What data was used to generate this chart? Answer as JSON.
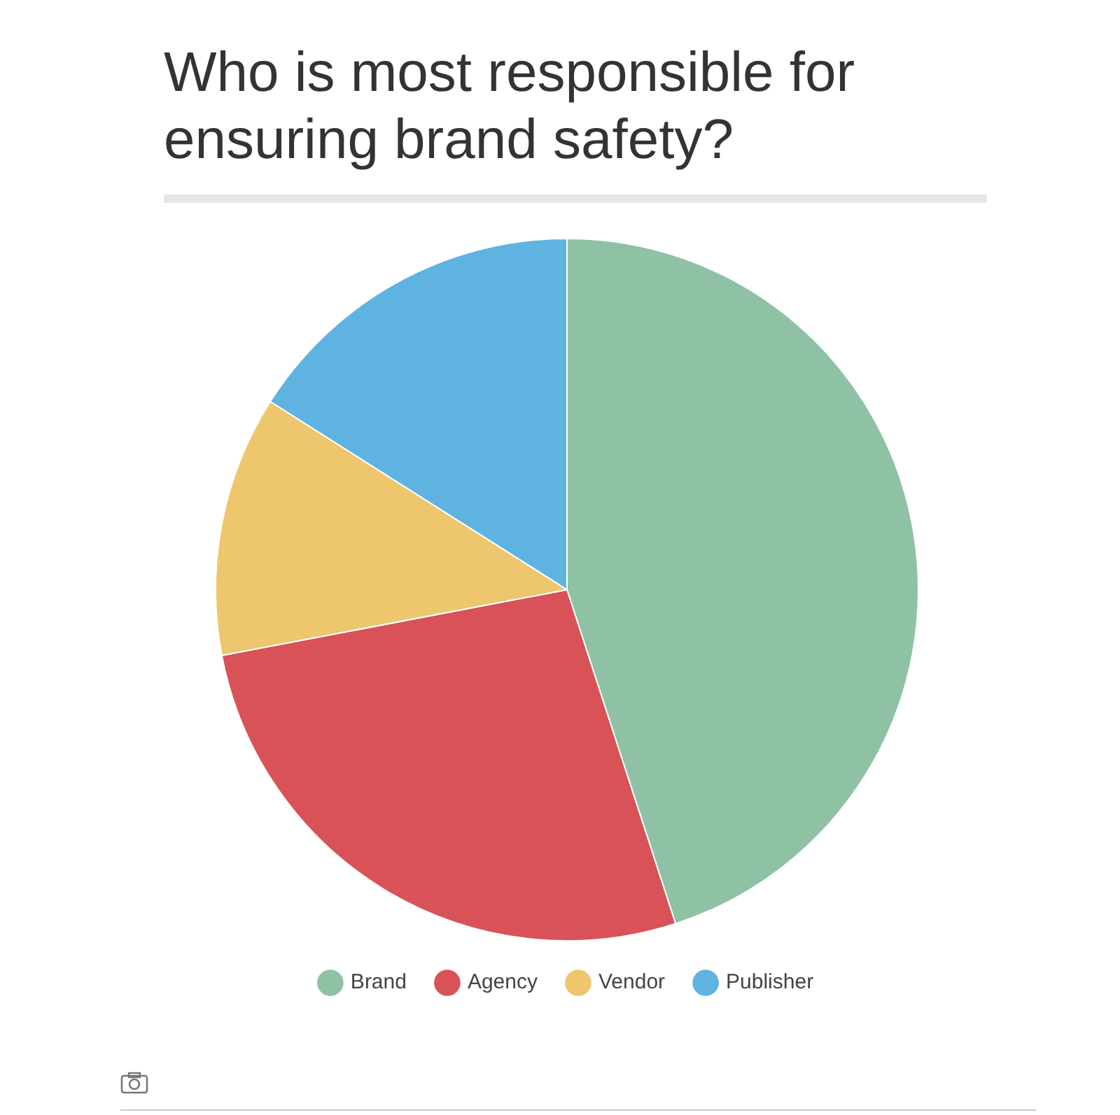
{
  "chart_data": {
    "type": "pie",
    "title": "Who is most responsible for ensuring brand safety?",
    "categories": [
      "Brand",
      "Agency",
      "Vendor",
      "Publisher"
    ],
    "values": [
      45,
      27,
      12,
      16
    ],
    "colors": [
      "#8fc1a5",
      "#d95257",
      "#edc66d",
      "#5fb3e0"
    ],
    "legend": "bottom"
  }
}
